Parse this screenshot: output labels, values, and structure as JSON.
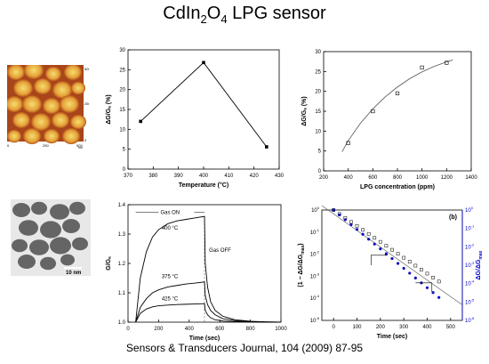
{
  "title": {
    "main": "CdIn",
    "sub": "2",
    "rest": "O",
    "sub2": "4",
    "tail": " LPG sensor"
  },
  "citation": "Sensors & Transducers Journal, 104 (2009) 87-95",
  "afm_image": {
    "x_ticks": [
      "0",
      "250",
      "500"
    ],
    "y_ticks": [
      "500",
      "250",
      "0"
    ],
    "unit": "nm"
  },
  "tem_image": {
    "scale_bar": "10 nm"
  },
  "chart_data": [
    {
      "type": "line",
      "xlabel": "Temperature (°C)",
      "ylabel": "ΔG/Gₐ (%)",
      "xlim": [
        370,
        430
      ],
      "ylim": [
        0,
        30
      ],
      "x_ticks": [
        370,
        380,
        390,
        400,
        410,
        420,
        430
      ],
      "y_ticks": [
        0,
        5,
        10,
        15,
        20,
        25,
        30
      ],
      "x": [
        375,
        400,
        425
      ],
      "y": [
        12,
        26.8,
        5.6
      ]
    },
    {
      "type": "scatter",
      "xlabel": "LPG concentration (ppm)",
      "ylabel": "ΔG/Gₐ (%)",
      "xlim": [
        200,
        1400
      ],
      "ylim": [
        0,
        30
      ],
      "x_ticks": [
        200,
        400,
        600,
        800,
        1000,
        1200,
        1400
      ],
      "y_ticks": [
        0,
        5,
        10,
        15,
        20,
        25,
        30
      ],
      "x": [
        400,
        600,
        800,
        1000,
        1200
      ],
      "y": [
        7,
        15,
        19.5,
        26,
        27.2
      ],
      "fit_x": [
        350,
        400,
        500,
        600,
        700,
        800,
        900,
        1000,
        1100,
        1200,
        1250
      ],
      "fit_y": [
        4.8,
        7.6,
        12.0,
        15.6,
        18.6,
        21.1,
        23.2,
        24.9,
        26.3,
        27.4,
        27.9
      ]
    },
    {
      "type": "line",
      "xlabel": "Time (sec)",
      "ylabel": "G/Gₐ",
      "xlim": [
        0,
        1000
      ],
      "ylim": [
        1.0,
        1.4
      ],
      "x_ticks": [
        0,
        200,
        400,
        600,
        800,
        1000
      ],
      "y_ticks": [
        1.0,
        1.1,
        1.2,
        1.3,
        1.4
      ],
      "annotations": [
        "Gas ON",
        "Gas OFF"
      ],
      "series": [
        {
          "name": "400 °C",
          "x": [
            50,
            80,
            120,
            160,
            200,
            260,
            320,
            380,
            440,
            500,
            505,
            520,
            540,
            570,
            620,
            700,
            800,
            900,
            1000
          ],
          "y": [
            1.0,
            1.15,
            1.24,
            1.29,
            1.315,
            1.335,
            1.345,
            1.35,
            1.355,
            1.36,
            1.2,
            1.12,
            1.07,
            1.04,
            1.02,
            1.008,
            1.003,
            1.001,
            1.0
          ]
        },
        {
          "name": "375 °C",
          "x": [
            50,
            80,
            120,
            160,
            200,
            260,
            320,
            380,
            440,
            500,
            505,
            520,
            540,
            570,
            620,
            700,
            800,
            900,
            1000
          ],
          "y": [
            1.0,
            1.05,
            1.08,
            1.1,
            1.11,
            1.12,
            1.125,
            1.13,
            1.133,
            1.137,
            1.09,
            1.06,
            1.04,
            1.025,
            1.012,
            1.005,
            1.002,
            1.001,
            1.0
          ]
        },
        {
          "name": "425 °C",
          "x": [
            50,
            80,
            120,
            160,
            200,
            260,
            320,
            380,
            440,
            500,
            505,
            520,
            540,
            570,
            620,
            700,
            800,
            900,
            1000
          ],
          "y": [
            1.0,
            1.03,
            1.045,
            1.052,
            1.056,
            1.058,
            1.06,
            1.061,
            1.062,
            1.063,
            1.04,
            1.025,
            1.015,
            1.008,
            1.004,
            1.002,
            1.001,
            1.0,
            1.0
          ]
        }
      ]
    },
    {
      "type": "scatter",
      "panel_label": "(b)",
      "xlabel": "Time (sec)",
      "ylabel": "(1 − ΔG/ΔG",
      "ylabel_sub": "max",
      "ylabel_tail": ")",
      "ylabel_right": "ΔG/ΔG",
      "ylabel_right_sub": "max",
      "xlim": [
        -50,
        550
      ],
      "x_ticks": [
        0,
        100,
        200,
        300,
        400,
        500
      ],
      "left_y_exponents": [
        0,
        -1,
        -2,
        -3,
        -4,
        -5
      ],
      "right_y_exponents": [
        0,
        -1,
        -2,
        -3,
        -4,
        -5,
        -6
      ],
      "tick_base": "10",
      "series": [
        {
          "name": "open",
          "x": [
            0,
            25,
            50,
            75,
            100,
            125,
            150,
            175,
            200,
            225,
            250,
            275,
            300,
            325,
            350,
            375,
            400,
            425,
            450
          ],
          "log_y": [
            0,
            -0.18,
            -0.36,
            -0.54,
            -0.72,
            -0.9,
            -1.08,
            -1.26,
            -1.44,
            -1.62,
            -1.8,
            -1.98,
            -2.16,
            -2.34,
            -2.52,
            -2.7,
            -2.88,
            -3.06,
            -3.24
          ]
        },
        {
          "name": "filled",
          "x": [
            0,
            25,
            50,
            75,
            100,
            125,
            150,
            175,
            200,
            225,
            250,
            275,
            300,
            325,
            350,
            375,
            400,
            425,
            450
          ],
          "log_y": [
            0,
            -0.22,
            -0.44,
            -0.66,
            -0.88,
            -1.1,
            -1.32,
            -1.54,
            -1.76,
            -1.98,
            -2.2,
            -2.42,
            -2.64,
            -2.86,
            -3.08,
            -3.3,
            -3.52,
            -3.74,
            -3.96
          ]
        }
      ]
    }
  ]
}
